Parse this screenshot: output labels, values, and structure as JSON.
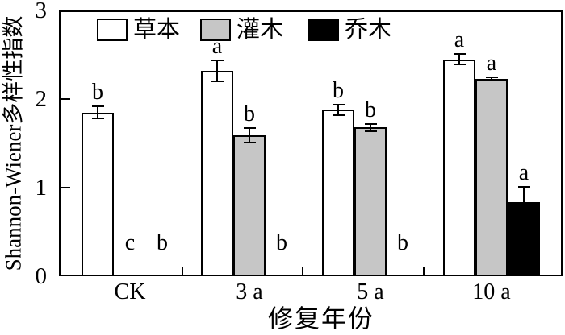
{
  "chart_data": {
    "type": "bar",
    "title": "",
    "xlabel": "修复年份",
    "ylabel": "Shannon-Wiener多样性指数",
    "ylim": [
      0,
      3
    ],
    "yticks": [
      0,
      1,
      2,
      3
    ],
    "categories": [
      "CK",
      "3 a",
      "5 a",
      "10 a"
    ],
    "series": [
      {
        "name": "草本",
        "color": "#ffffff",
        "values": [
          1.85,
          2.32,
          1.88,
          2.45
        ],
        "errors": [
          0.07,
          0.12,
          0.06,
          0.06
        ],
        "sig_letters": [
          "b",
          "a",
          "b",
          "a"
        ]
      },
      {
        "name": "灌木",
        "color": "#c6c6c6",
        "values": [
          0,
          1.59,
          1.68,
          2.23
        ],
        "errors": [
          0,
          0.08,
          0.04,
          0.02
        ],
        "sig_letters": [
          "c",
          "b",
          "b",
          "a"
        ]
      },
      {
        "name": "乔木",
        "color": "#000000",
        "values": [
          0,
          0,
          0,
          0.84
        ],
        "errors": [
          0,
          0,
          0,
          0.17
        ],
        "sig_letters": [
          "b",
          "b",
          "b",
          "a"
        ]
      }
    ],
    "legend": {
      "position": "top-inside",
      "labels": [
        "草本",
        "灌木",
        "乔木"
      ]
    },
    "grid": false,
    "axis_color": "#000000",
    "background": "#ffffff"
  }
}
